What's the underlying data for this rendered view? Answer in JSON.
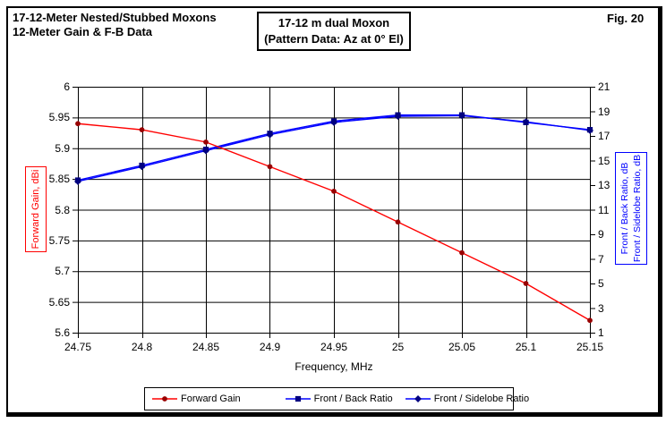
{
  "header": {
    "title_line1": "17-12-Meter Nested/Stubbed Moxons",
    "title_line2": "12-Meter Gain & F-B Data",
    "box_line1": "17-12 m dual Moxon",
    "box_line2": "(Pattern Data: Az at 0° El)",
    "fig_label": "Fig. 20"
  },
  "axes": {
    "left": {
      "title": "Forward Gain, dBi",
      "color": "#ff0000",
      "range": [
        5.6,
        6.0
      ],
      "ticks": [
        "6",
        "5.95",
        "5.9",
        "5.85",
        "5.8",
        "5.75",
        "5.7",
        "5.65",
        "5.6"
      ]
    },
    "right": {
      "title_line1": "Front / Back Ratio,  dB",
      "title_line2": "Front / Sidelobe Ratio,  dB",
      "color": "#0000ff",
      "range": [
        1,
        21
      ],
      "ticks": [
        "21",
        "19",
        "17",
        "15",
        "13",
        "11",
        "9",
        "7",
        "5",
        "3",
        "1"
      ]
    },
    "x": {
      "title": "Frequency, MHz",
      "range": [
        24.75,
        25.15
      ],
      "ticks": [
        "24.75",
        "24.8",
        "24.85",
        "24.9",
        "24.95",
        "25",
        "25.05",
        "25.1",
        "25.15"
      ]
    }
  },
  "chart_data": {
    "type": "line",
    "title": "17-12 m dual Moxon (Pattern Data: Az at 0° El)",
    "xlabel": "Frequency, MHz",
    "ylabel_left": "Forward Gain, dBi",
    "ylabel_right": "Front / Back Ratio, dB; Front / Sidelobe Ratio, dB",
    "grid": true,
    "legend_position": "bottom",
    "xlim": [
      24.75,
      25.15
    ],
    "ylim_left": [
      5.6,
      6.0
    ],
    "ylim_right": [
      1,
      21
    ],
    "x": [
      24.75,
      24.8,
      24.85,
      24.9,
      24.95,
      25.0,
      25.05,
      25.1,
      25.15
    ],
    "series": [
      {
        "name": "Front / Sidelobe Ratio",
        "axis": "right",
        "color": "#0000ff",
        "marker_color": "#000080",
        "marker": "diamond",
        "values": [
          13.3,
          14.5,
          15.8,
          17.1,
          18.1,
          18.6,
          18.65,
          18.15,
          17.45
        ]
      },
      {
        "name": "Front / Back Ratio",
        "axis": "right",
        "color": "#0000ff",
        "marker_color": "#000080",
        "marker": "square",
        "values": [
          13.4,
          14.6,
          15.9,
          17.2,
          18.2,
          18.7,
          18.7,
          18.1,
          17.5
        ]
      },
      {
        "name": "Forward Gain",
        "axis": "left",
        "color": "#ff0000",
        "marker_color": "#990000",
        "marker": "circle",
        "values": [
          5.94,
          5.93,
          5.91,
          5.87,
          5.83,
          5.78,
          5.73,
          5.68,
          5.62
        ]
      }
    ],
    "legend_order": [
      "Forward Gain",
      "Front / Back Ratio",
      "Front / Sidelobe Ratio"
    ]
  }
}
